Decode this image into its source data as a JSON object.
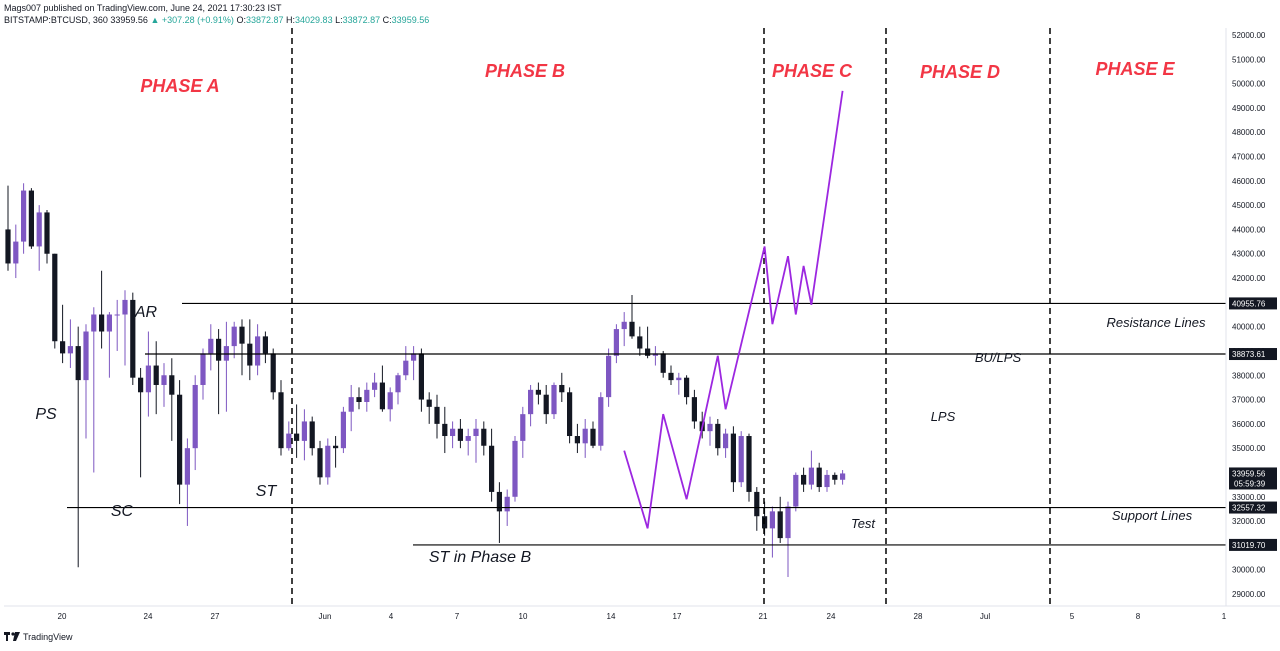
{
  "header": {
    "published": "Mags007 published on TradingView.com, June 24, 2021 17:30:23 IST",
    "symbol": "BITSTAMP:BTCUSD, 360",
    "last": "33959.56",
    "change": "+307.28 (+0.91%)",
    "o_label": "O:",
    "o": "33872.87",
    "h_label": "H:",
    "h": "34029.83",
    "l_label": "L:",
    "l": "33872.87",
    "c_label": "C:",
    "c": "33959.56"
  },
  "footer": {
    "brand": "TradingView"
  },
  "colors": {
    "bull": "#7e57c2",
    "bear": "#131722",
    "phase": "#f23645",
    "projection": "#9c27e0",
    "grid_text": "#131722"
  },
  "chart_data": {
    "type": "candlestick",
    "title": "",
    "ylim": [
      28500,
      52500
    ],
    "y_ticks": [
      29000,
      30000,
      31000,
      32000,
      33000,
      34000,
      35000,
      36000,
      37000,
      38000,
      39000,
      40000,
      41000,
      42000,
      43000,
      44000,
      45000,
      46000,
      47000,
      48000,
      49000,
      50000,
      51000,
      52000
    ],
    "x_ticks": [
      "20",
      "24",
      "27",
      "Jun",
      "4",
      "7",
      "10",
      "14",
      "17",
      "21",
      "24",
      "28",
      "Jul",
      "5",
      "8",
      "1"
    ],
    "price_labels": [
      {
        "text": "40955.76",
        "value": 40955.76
      },
      {
        "text": "38873.61",
        "value": 38873.61
      },
      {
        "text": "33959.56",
        "value": 33959.56,
        "sub": "05:59:39"
      },
      {
        "text": "32557.32",
        "value": 32557.32
      },
      {
        "text": "31019.70",
        "value": 31019.7
      }
    ],
    "phases": [
      "PHASE A",
      "PHASE B",
      "PHASE C",
      "PHASE D",
      "PHASE E"
    ],
    "annotations": [
      "PS",
      "SC",
      "AR",
      "ST",
      "ST in Phase B",
      "Test",
      "LPS",
      "BU/LPS",
      "Resistance Lines",
      "Support Lines"
    ],
    "projection": [
      {
        "x": "c79",
        "y": 34900
      },
      {
        "x": "c82",
        "y": 31700
      },
      {
        "x": "c84",
        "y": 36400
      },
      {
        "x": "c87",
        "y": 32900
      },
      {
        "x": "c91",
        "y": 38800
      },
      {
        "x": "c92",
        "y": 36600
      },
      {
        "x": "c97",
        "y": 43300
      },
      {
        "x": "c98",
        "y": 40100
      },
      {
        "x": "c100",
        "y": 42900
      },
      {
        "x": "c101",
        "y": 40500
      },
      {
        "x": "c102",
        "y": 42500
      },
      {
        "x": "c103",
        "y": 40900
      },
      {
        "x": "c107",
        "y": 49700
      }
    ],
    "candles": [
      [
        44000,
        45800,
        42300,
        42600
      ],
      [
        42600,
        44200,
        42000,
        43500
      ],
      [
        43500,
        45900,
        43000,
        45600
      ],
      [
        45600,
        45700,
        43200,
        43300
      ],
      [
        43300,
        45000,
        42300,
        44700
      ],
      [
        44700,
        44800,
        42600,
        43000
      ],
      [
        43000,
        43000,
        39100,
        39400
      ],
      [
        39400,
        40900,
        38500,
        38900
      ],
      [
        38900,
        40300,
        38300,
        39200
      ],
      [
        39200,
        40000,
        30100,
        37800
      ],
      [
        37800,
        40100,
        35400,
        39800
      ],
      [
        39800,
        40800,
        34000,
        40500
      ],
      [
        40500,
        42300,
        39100,
        39800
      ],
      [
        39800,
        40600,
        37900,
        40500
      ],
      [
        40500,
        41100,
        39000,
        40500
      ],
      [
        40500,
        41500,
        38400,
        41100
      ],
      [
        41100,
        41400,
        37600,
        37900
      ],
      [
        37900,
        38300,
        33800,
        37300
      ],
      [
        37300,
        39800,
        36300,
        38400
      ],
      [
        38400,
        39400,
        36400,
        37600
      ],
      [
        37600,
        38500,
        36700,
        38000
      ],
      [
        38000,
        38700,
        35300,
        37200
      ],
      [
        37200,
        37800,
        32700,
        33500
      ],
      [
        33500,
        35400,
        31800,
        35000
      ],
      [
        35000,
        38000,
        34100,
        37600
      ],
      [
        37600,
        39100,
        37000,
        38900
      ],
      [
        38900,
        40100,
        38200,
        39500
      ],
      [
        39500,
        39900,
        36400,
        38600
      ],
      [
        38600,
        40200,
        36500,
        39200
      ],
      [
        39200,
        40200,
        38700,
        40000
      ],
      [
        40000,
        40300,
        38000,
        39300
      ],
      [
        39300,
        40300,
        37800,
        38400
      ],
      [
        38400,
        40100,
        38000,
        39600
      ],
      [
        39600,
        39800,
        38500,
        38900
      ],
      [
        38900,
        39100,
        37000,
        37300
      ],
      [
        37300,
        37800,
        34700,
        35000
      ],
      [
        35000,
        36100,
        34900,
        35600
      ],
      [
        35600,
        36800,
        34600,
        35300
      ],
      [
        35300,
        36600,
        34500,
        36100
      ],
      [
        36100,
        36300,
        34700,
        35000
      ],
      [
        35000,
        35300,
        33500,
        33800
      ],
      [
        33800,
        35400,
        33500,
        35100
      ],
      [
        35100,
        35500,
        34200,
        35000
      ],
      [
        35000,
        36700,
        34800,
        36500
      ],
      [
        36500,
        37600,
        35700,
        37100
      ],
      [
        37100,
        37500,
        36600,
        36900
      ],
      [
        36900,
        37700,
        36500,
        37400
      ],
      [
        37400,
        38100,
        37100,
        37700
      ],
      [
        37700,
        38400,
        36500,
        36600
      ],
      [
        36600,
        37500,
        36100,
        37300
      ],
      [
        37300,
        38100,
        36800,
        38000
      ],
      [
        38000,
        39200,
        37800,
        38600
      ],
      [
        38600,
        39200,
        37800,
        38900
      ],
      [
        38900,
        39100,
        36500,
        37000
      ],
      [
        37000,
        37300,
        36000,
        36700
      ],
      [
        36700,
        37200,
        35400,
        36000
      ],
      [
        36000,
        36700,
        34800,
        35500
      ],
      [
        35500,
        36100,
        35000,
        35800
      ],
      [
        35800,
        36200,
        35000,
        35300
      ],
      [
        35300,
        35800,
        34700,
        35500
      ],
      [
        35500,
        36200,
        34400,
        35800
      ],
      [
        35800,
        36100,
        34700,
        35100
      ],
      [
        35100,
        35800,
        32800,
        33200
      ],
      [
        33200,
        33600,
        31100,
        32400
      ],
      [
        32400,
        33300,
        31800,
        33000
      ],
      [
        33000,
        35500,
        32800,
        35300
      ],
      [
        35300,
        36700,
        34600,
        36400
      ],
      [
        36400,
        37600,
        35900,
        37400
      ],
      [
        37400,
        37700,
        36800,
        37200
      ],
      [
        37200,
        37600,
        36000,
        36400
      ],
      [
        36400,
        37700,
        36200,
        37600
      ],
      [
        37600,
        38100,
        36900,
        37300
      ],
      [
        37300,
        37500,
        35200,
        35500
      ],
      [
        35500,
        36000,
        34800,
        35200
      ],
      [
        35200,
        36200,
        34600,
        35800
      ],
      [
        35800,
        36100,
        35000,
        35100
      ],
      [
        35100,
        37300,
        34900,
        37100
      ],
      [
        37100,
        39100,
        36700,
        38800
      ],
      [
        38800,
        40100,
        38500,
        39900
      ],
      [
        39900,
        40600,
        39200,
        40200
      ],
      [
        40200,
        41300,
        39500,
        39600
      ],
      [
        39600,
        40000,
        38800,
        39100
      ],
      [
        39100,
        40000,
        38700,
        38800
      ],
      [
        38800,
        39200,
        38400,
        38900
      ],
      [
        38900,
        39000,
        37900,
        38100
      ],
      [
        38100,
        38400,
        37600,
        37800
      ],
      [
        37800,
        38100,
        37200,
        37900
      ],
      [
        37900,
        38000,
        36800,
        37100
      ],
      [
        37100,
        37400,
        35800,
        36100
      ],
      [
        36100,
        36500,
        35400,
        35700
      ],
      [
        35700,
        36300,
        35100,
        36000
      ],
      [
        36000,
        36200,
        34700,
        35000
      ],
      [
        35000,
        35800,
        34600,
        35600
      ],
      [
        35600,
        35900,
        33200,
        33600
      ],
      [
        33600,
        35700,
        33400,
        35500
      ],
      [
        35500,
        35600,
        32800,
        33200
      ],
      [
        33200,
        33400,
        31600,
        32200
      ],
      [
        32200,
        32800,
        31400,
        31700
      ],
      [
        31700,
        32600,
        30500,
        32400
      ],
      [
        32400,
        33000,
        31100,
        31300
      ],
      [
        31300,
        32800,
        29700,
        32600
      ],
      [
        32600,
        34000,
        32400,
        33900
      ],
      [
        33900,
        34200,
        33200,
        33500
      ],
      [
        33500,
        34900,
        33300,
        34200
      ],
      [
        34200,
        34400,
        33200,
        33400
      ],
      [
        33400,
        34100,
        33200,
        33900
      ],
      [
        33900,
        34000,
        33500,
        33700
      ],
      [
        33700,
        34100,
        33500,
        33960
      ]
    ]
  }
}
